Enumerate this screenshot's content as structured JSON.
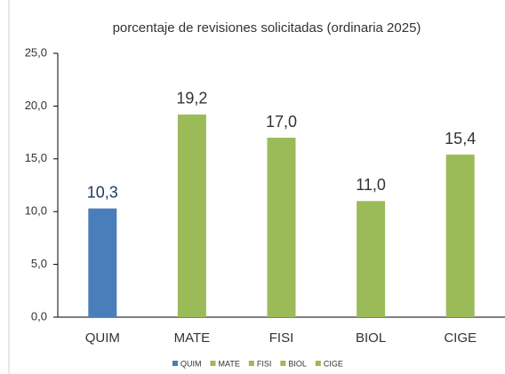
{
  "chart_data": {
    "type": "bar",
    "title": "porcentaje de revisiones solicitadas (ordinaria 2025)",
    "categories": [
      "QUIM",
      "MATE",
      "FISI",
      "BIOL",
      "CIGE"
    ],
    "values": [
      10.3,
      19.2,
      17.0,
      11.0,
      15.4
    ],
    "value_labels": [
      "10,3",
      "19,2",
      "17,0",
      "11,0",
      "15,4"
    ],
    "colors": [
      "#4a7ebb",
      "#9bbb59",
      "#9bbb59",
      "#9bbb59",
      "#9bbb59"
    ],
    "ylim": [
      0,
      25
    ],
    "yticks": [
      {
        "value": 0,
        "label": "0,0"
      },
      {
        "value": 5,
        "label": "5,0"
      },
      {
        "value": 10,
        "label": "10,0"
      },
      {
        "value": 15,
        "label": "15,0"
      },
      {
        "value": 20,
        "label": "20,0"
      },
      {
        "value": 25,
        "label": "25,0"
      }
    ],
    "grid": false
  }
}
